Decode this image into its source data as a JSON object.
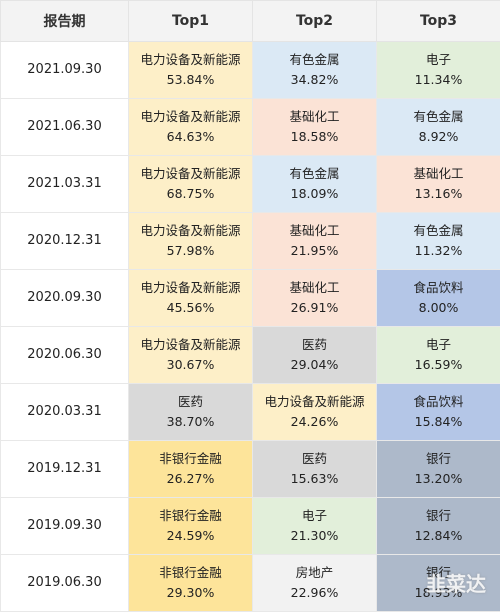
{
  "header": [
    "报告期",
    "Top1",
    "Top2",
    "Top3"
  ],
  "rows": [
    {
      "date": "2021.09.30",
      "cells": [
        {
          "name": "电力设备及新能源",
          "value": "53.84%",
          "color": "#fdefc8"
        },
        {
          "name": "有色金属",
          "value": "34.82%",
          "color": "#dbe9f5"
        },
        {
          "name": "电子",
          "value": "11.34%",
          "color": "#e2efda"
        }
      ]
    },
    {
      "date": "2021.06.30",
      "cells": [
        {
          "name": "电力设备及新能源",
          "value": "64.63%",
          "color": "#fdefc8"
        },
        {
          "name": "基础化工",
          "value": "18.58%",
          "color": "#fbe3d6"
        },
        {
          "name": "有色金属",
          "value": "8.92%",
          "color": "#dbe9f5"
        }
      ]
    },
    {
      "date": "2021.03.31",
      "cells": [
        {
          "name": "电力设备及新能源",
          "value": "68.75%",
          "color": "#fdefc8"
        },
        {
          "name": "有色金属",
          "value": "18.09%",
          "color": "#dbe9f5"
        },
        {
          "name": "基础化工",
          "value": "13.16%",
          "color": "#fbe3d6"
        }
      ]
    },
    {
      "date": "2020.12.31",
      "cells": [
        {
          "name": "电力设备及新能源",
          "value": "57.98%",
          "color": "#fdefc8"
        },
        {
          "name": "基础化工",
          "value": "21.95%",
          "color": "#fbe3d6"
        },
        {
          "name": "有色金属",
          "value": "11.32%",
          "color": "#dbe9f5"
        }
      ]
    },
    {
      "date": "2020.09.30",
      "cells": [
        {
          "name": "电力设备及新能源",
          "value": "45.56%",
          "color": "#fdefc8"
        },
        {
          "name": "基础化工",
          "value": "26.91%",
          "color": "#fbe3d6"
        },
        {
          "name": "食品饮料",
          "value": "8.00%",
          "color": "#b4c6e7"
        }
      ]
    },
    {
      "date": "2020.06.30",
      "cells": [
        {
          "name": "电力设备及新能源",
          "value": "30.67%",
          "color": "#fdefc8"
        },
        {
          "name": "医药",
          "value": "29.04%",
          "color": "#d9d9d9"
        },
        {
          "name": "电子",
          "value": "16.59%",
          "color": "#e2efda"
        }
      ]
    },
    {
      "date": "2020.03.31",
      "cells": [
        {
          "name": "医药",
          "value": "38.70%",
          "color": "#d9d9d9"
        },
        {
          "name": "电力设备及新能源",
          "value": "24.26%",
          "color": "#fdefc8"
        },
        {
          "name": "食品饮料",
          "value": "15.84%",
          "color": "#b4c6e7"
        }
      ]
    },
    {
      "date": "2019.12.31",
      "cells": [
        {
          "name": "非银行金融",
          "value": "26.27%",
          "color": "#fde49a"
        },
        {
          "name": "医药",
          "value": "15.63%",
          "color": "#d9d9d9"
        },
        {
          "name": "银行",
          "value": "13.20%",
          "color": "#adb9ca"
        }
      ]
    },
    {
      "date": "2019.09.30",
      "cells": [
        {
          "name": "非银行金融",
          "value": "24.59%",
          "color": "#fde49a"
        },
        {
          "name": "电子",
          "value": "21.30%",
          "color": "#e2efda"
        },
        {
          "name": "银行",
          "value": "12.84%",
          "color": "#adb9ca"
        }
      ]
    },
    {
      "date": "2019.06.30",
      "cells": [
        {
          "name": "非银行金融",
          "value": "29.30%",
          "color": "#fde49a"
        },
        {
          "name": "房地产",
          "value": "22.96%",
          "color": "#f2f2f2"
        },
        {
          "name": "银行",
          "value": "18.93%",
          "color": "#adb9ca"
        }
      ]
    }
  ],
  "watermark": "韭菜达"
}
